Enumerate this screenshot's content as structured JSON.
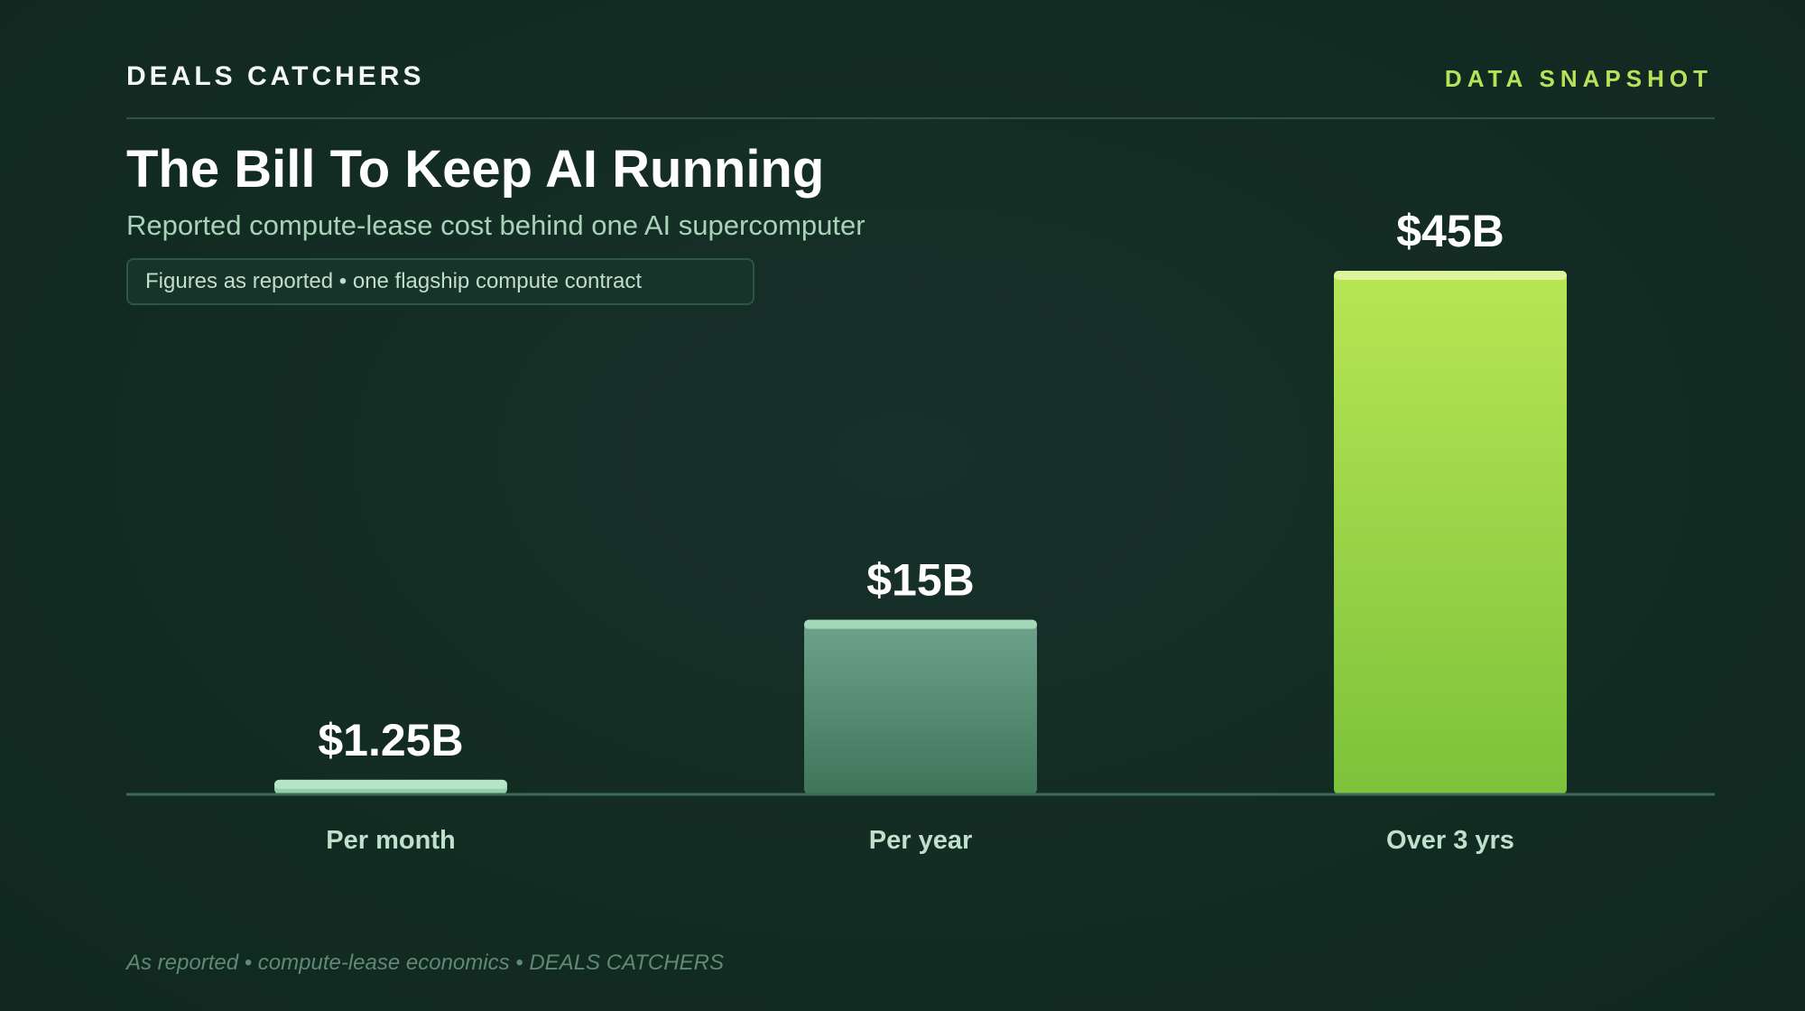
{
  "header": {
    "brand": "DEALS CATCHERS",
    "tag": "DATA SNAPSHOT"
  },
  "note": "Figures as reported • one flagship compute contract",
  "footer": "As reported • compute-lease economics • DEALS CATCHERS",
  "colors": {
    "background": "#132c23",
    "accent": "#b7e35a",
    "bar_small": "#a8dcbc",
    "bar_mid": "#5e967e",
    "bar_large": "#9ed649"
  },
  "chart_data": {
    "type": "bar",
    "title": "The Bill To Keep AI Running",
    "subtitle": "Reported compute-lease cost behind one AI supercomputer",
    "xlabel": "",
    "ylabel": "",
    "unit": "billion USD",
    "categories": [
      "Per month",
      "Per year",
      "Over 3 yrs"
    ],
    "values": [
      1.25,
      15,
      45
    ],
    "value_labels": [
      "$1.25B",
      "$15B",
      "$45B"
    ],
    "ylim": [
      0,
      45
    ],
    "grid": false,
    "legend": "none"
  }
}
